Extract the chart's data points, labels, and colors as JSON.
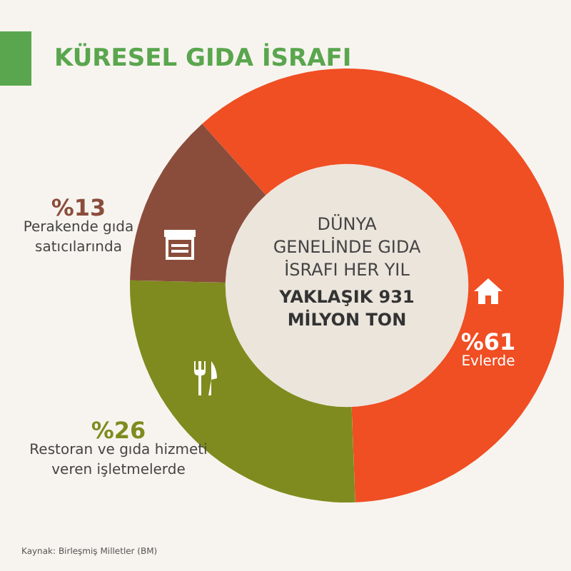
{
  "chart_data": {
    "type": "donut",
    "title": "KÜRESEL GIDA İSRAFI",
    "categories": [
      "Evlerde",
      "Restoran ve gıda hizmeti veren işletmelerde",
      "Perakende gıda satıcılarında"
    ],
    "values": [
      61,
      26,
      13
    ],
    "colors": [
      "#f04e23",
      "#7f8b1e",
      "#8b4d3b"
    ],
    "value_labels": [
      "%61",
      "%26",
      "%13"
    ],
    "annotations": [
      "DÜNYA GENELİNDE GIDA İSRAFI HER YIL",
      "YAKLAŞIK 931 MİLYON TON",
      "Kaynak: Birleşmiş Milletler (BM)"
    ],
    "legend": false
  }
}
